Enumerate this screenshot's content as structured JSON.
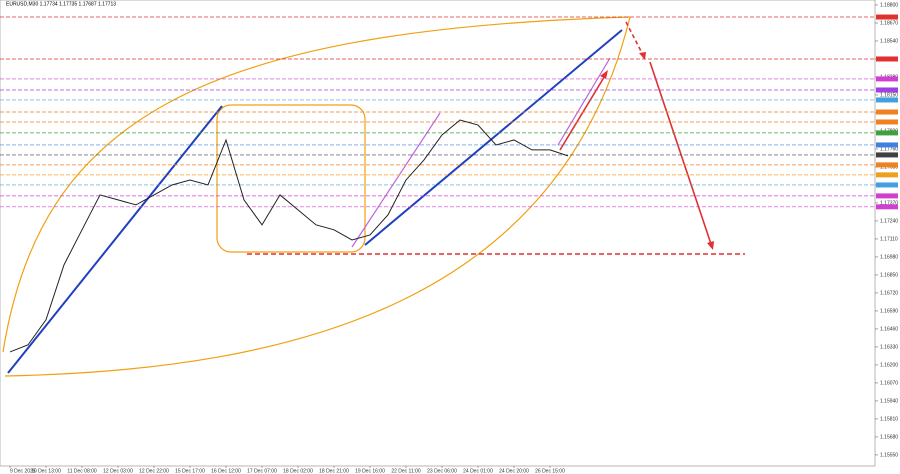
{
  "chart_data": {
    "type": "line",
    "title": "EURUSD,M30  1.17734 1.17735 1.17687 1.17713",
    "categories": [
      "9 Dec 2025",
      null,
      "10 Dec 13:00",
      null,
      "11 Dec 08:00",
      null,
      "12 Dec 03:00",
      null,
      "12 Dec 22:00",
      null,
      "15 Dec 17:00",
      null,
      "16 Dec 12:00",
      null,
      "17 Dec 07:00",
      null,
      "18 Dec 02:00",
      null,
      "18 Dec 21:00",
      null,
      "19 Dec 16:00",
      null,
      "22 Dec 11:00",
      null,
      "23 Dec 06:00",
      null,
      "24 Dec 01:00",
      null,
      "24 Dec 20:00",
      null,
      "26 Dec 15:00",
      null
    ],
    "series": [
      {
        "name": "EURUSD",
        "color": "#222222",
        "values": [
          1.16294,
          1.16345,
          1.16526,
          1.16923,
          1.17176,
          1.17428,
          1.17392,
          1.17356,
          1.17428,
          1.175,
          1.17536,
          1.175,
          1.17825,
          1.17392,
          1.17212,
          1.17428,
          1.1732,
          1.17212,
          1.17176,
          1.17103,
          1.17139,
          1.17284,
          1.17536,
          1.17681,
          1.17861,
          1.17969,
          1.17933,
          1.17789,
          1.17825,
          1.17753,
          1.17753,
          1.1771
        ]
      }
    ],
    "levels": [
      {
        "value": 1.18713,
        "color": "#e03030"
      },
      {
        "value": 1.1841,
        "color": "#e03030"
      },
      {
        "value": 1.18266,
        "color": "#d040d0"
      },
      {
        "value": 1.18186,
        "color": "#a040e0"
      },
      {
        "value": 1.18114,
        "color": "#40a0e0"
      },
      {
        "value": 1.18027,
        "color": "#f08020"
      },
      {
        "value": 1.17955,
        "color": "#f08020"
      },
      {
        "value": 1.17876,
        "color": "#40a040"
      },
      {
        "value": 1.17789,
        "color": "#4080e0"
      },
      {
        "value": 1.17717,
        "color": "#404040"
      },
      {
        "value": 1.17645,
        "color": "#f08020"
      },
      {
        "value": 1.17573,
        "color": "#f0a020"
      },
      {
        "value": 1.175,
        "color": "#40a0e0"
      },
      {
        "value": 1.17421,
        "color": "#d040d0"
      },
      {
        "value": 1.17342,
        "color": "#d040d0"
      }
    ],
    "ylim": [
      1.1547,
      1.18836
    ],
    "yticks": [
      {
        "value": 1.188,
        "label": "1.18800"
      },
      {
        "value": 1.1867,
        "label": "1.18670"
      },
      {
        "value": 1.1854,
        "label": "1.18540"
      },
      {
        "value": 1.1841,
        "label": "1.18410"
      },
      {
        "value": 1.1828,
        "label": "1.18280"
      },
      {
        "value": 1.1815,
        "label": "1.18150"
      },
      {
        "value": 1.1802,
        "label": "1.18020"
      },
      {
        "value": 1.1789,
        "label": "1.17890"
      },
      {
        "value": 1.1776,
        "label": "1.17760"
      },
      {
        "value": 1.1763,
        "label": "1.17630"
      },
      {
        "value": 1.175,
        "label": "1.17500"
      },
      {
        "value": 1.1737,
        "label": "1.17370"
      },
      {
        "value": 1.1724,
        "label": "1.17240"
      },
      {
        "value": 1.1711,
        "label": "1.17110"
      },
      {
        "value": 1.1698,
        "label": "1.16980"
      },
      {
        "value": 1.1685,
        "label": "1.16850"
      },
      {
        "value": 1.1672,
        "label": "1.16720"
      },
      {
        "value": 1.1659,
        "label": "1.16590"
      },
      {
        "value": 1.1646,
        "label": "1.16460"
      },
      {
        "value": 1.1633,
        "label": "1.16330"
      },
      {
        "value": 1.162,
        "label": "1.16200"
      },
      {
        "value": 1.1607,
        "label": "1.16070"
      },
      {
        "value": 1.1594,
        "label": "1.15940"
      },
      {
        "value": 1.1581,
        "label": "1.15810"
      },
      {
        "value": 1.1568,
        "label": "1.15680"
      },
      {
        "value": 1.1555,
        "label": "1.15550"
      }
    ],
    "grid": false
  }
}
